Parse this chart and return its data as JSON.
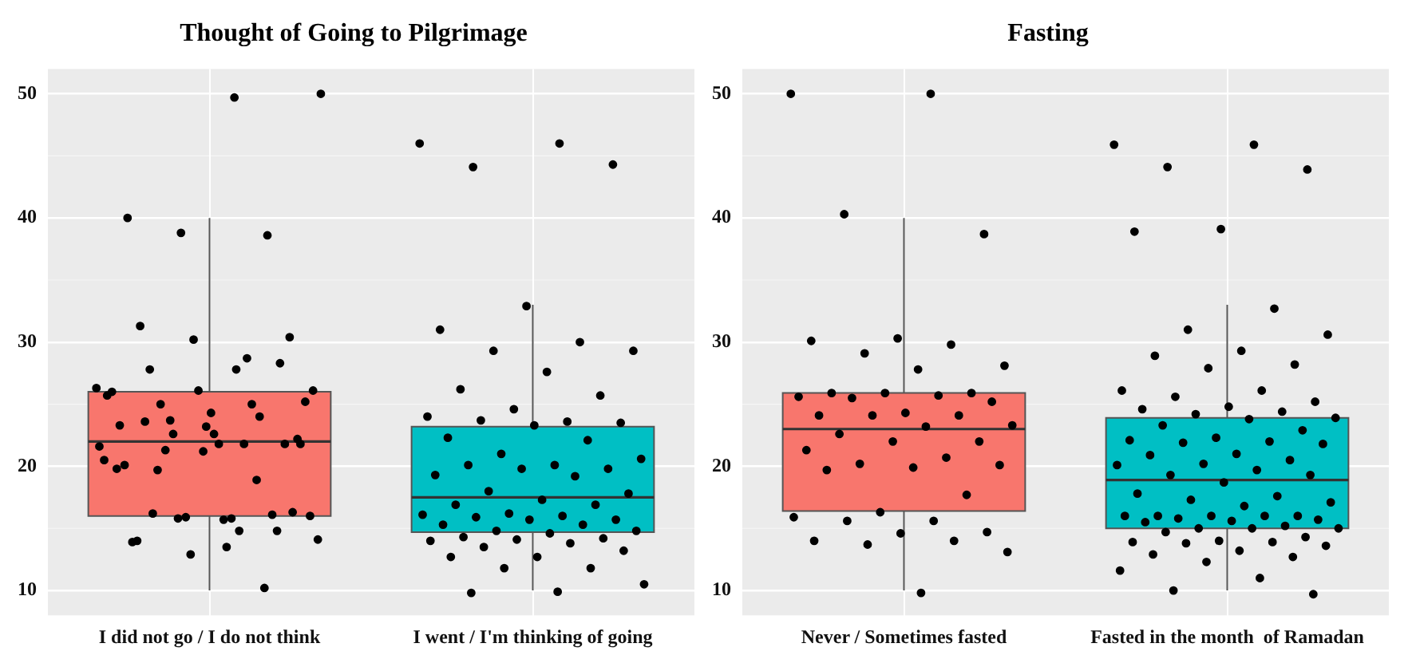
{
  "chart_data": [
    {
      "type": "box",
      "title": "Thought of Going to Pilgrimage",
      "categories": [
        "I did not go / I do not think",
        "I went / I'm thinking of going"
      ],
      "colors": [
        "#f8766d",
        "#00bfc4"
      ],
      "ylim": [
        8,
        52
      ],
      "yticks": [
        10,
        20,
        30,
        40,
        50
      ],
      "grid": true,
      "boxes": [
        {
          "low": 10,
          "q1": 16,
          "median": 22,
          "q3": 26,
          "high": 40
        },
        {
          "low": 10,
          "q1": 14.7,
          "median": 17.5,
          "q3": 23.2,
          "high": 33
        }
      ],
      "series": [
        {
          "type": "scatter",
          "color": "#000000",
          "x": [
            "I did not go / I do not think",
            "I did not go / I do not think",
            "I did not go / I do not think",
            "I did not go / I do not think",
            "I did not go / I do not think",
            "I did not go / I do not think",
            "I did not go / I do not think",
            "I did not go / I do not think",
            "I did not go / I do not think",
            "I did not go / I do not think",
            "I did not go / I do not think",
            "I did not go / I do not think",
            "I did not go / I do not think",
            "I did not go / I do not think",
            "I did not go / I do not think",
            "I did not go / I do not think",
            "I did not go / I do not think",
            "I did not go / I do not think",
            "I did not go / I do not think",
            "I did not go / I do not think",
            "I did not go / I do not think",
            "I did not go / I do not think",
            "I did not go / I do not think",
            "I did not go / I do not think",
            "I did not go / I do not think",
            "I did not go / I do not think",
            "I did not go / I do not think",
            "I did not go / I do not think",
            "I did not go / I do not think",
            "I did not go / I do not think",
            "I did not go / I do not think",
            "I did not go / I do not think",
            "I did not go / I do not think",
            "I did not go / I do not think",
            "I did not go / I do not think",
            "I did not go / I do not think",
            "I did not go / I do not think",
            "I did not go / I do not think",
            "I did not go / I do not think",
            "I did not go / I do not think",
            "I did not go / I do not think",
            "I did not go / I do not think",
            "I did not go / I do not think",
            "I did not go / I do not think",
            "I did not go / I do not think",
            "I did not go / I do not think",
            "I did not go / I do not think",
            "I did not go / I do not think",
            "I did not go / I do not think",
            "I did not go / I do not think",
            "I did not go / I do not think",
            "I did not go / I do not think",
            "I did not go / I do not think",
            "I did not go / I do not think",
            "I did not go / I do not think",
            "I did not go / I do not think",
            "I did not go / I do not think"
          ],
          "values": [
            26.3,
            27.8,
            27.8,
            30.4,
            21.2,
            19.8,
            18.9,
            23.7,
            16.0,
            15.7,
            14.0,
            14.8,
            12.9,
            20.5,
            21.8,
            19.7,
            22.2,
            24.3,
            20.1,
            10.2,
            15.8,
            14.1,
            15.8,
            23.6,
            21.8,
            26.1,
            26.0,
            25.0,
            21.3,
            25.2,
            21.8,
            13.9,
            16.1,
            15.9,
            21.6,
            14.8,
            16.2,
            16.3,
            23.2,
            23.3,
            24.0,
            22.6,
            26.1,
            13.5,
            31.3,
            28.3,
            30.2,
            25.7,
            28.7,
            25.0,
            21.8,
            22.6,
            40,
            38.6,
            38.8,
            50,
            49.7
          ]
        },
        {
          "type": "scatter",
          "color": "#000000",
          "x": [
            "I went / I'm thinking of going",
            "I went / I'm thinking of going",
            "I went / I'm thinking of going",
            "I went / I'm thinking of going",
            "I went / I'm thinking of going",
            "I went / I'm thinking of going",
            "I went / I'm thinking of going",
            "I went / I'm thinking of going",
            "I went / I'm thinking of going",
            "I went / I'm thinking of going",
            "I went / I'm thinking of going",
            "I went / I'm thinking of going",
            "I went / I'm thinking of going",
            "I went / I'm thinking of going",
            "I went / I'm thinking of going",
            "I went / I'm thinking of going",
            "I went / I'm thinking of going",
            "I went / I'm thinking of going",
            "I went / I'm thinking of going",
            "I went / I'm thinking of going",
            "I went / I'm thinking of going",
            "I went / I'm thinking of going",
            "I went / I'm thinking of going",
            "I went / I'm thinking of going",
            "I went / I'm thinking of going",
            "I went / I'm thinking of going",
            "I went / I'm thinking of going",
            "I went / I'm thinking of going",
            "I went / I'm thinking of going",
            "I went / I'm thinking of going",
            "I went / I'm thinking of going",
            "I went / I'm thinking of going",
            "I went / I'm thinking of going",
            "I went / I'm thinking of going",
            "I went / I'm thinking of going",
            "I went / I'm thinking of going",
            "I went / I'm thinking of going",
            "I went / I'm thinking of going",
            "I went / I'm thinking of going",
            "I went / I'm thinking of going",
            "I went / I'm thinking of going",
            "I went / I'm thinking of going",
            "I went / I'm thinking of going",
            "I went / I'm thinking of going",
            "I went / I'm thinking of going",
            "I went / I'm thinking of going",
            "I went / I'm thinking of going",
            "I went / I'm thinking of going",
            "I went / I'm thinking of going",
            "I went / I'm thinking of going",
            "I went / I'm thinking of going",
            "I went / I'm thinking of going",
            "I went / I'm thinking of going",
            "I went / I'm thinking of going",
            "I went / I'm thinking of going",
            "I went / I'm thinking of going",
            "I went / I'm thinking of going",
            "I went / I'm thinking of going"
          ],
          "values": [
            46.0,
            46.0,
            44.1,
            44.3,
            32.9,
            31.0,
            30.0,
            29.3,
            29.3,
            27.6,
            26.2,
            25.7,
            24.6,
            24.0,
            23.6,
            23.7,
            23.5,
            23.3,
            22.3,
            22.1,
            21.0,
            20.6,
            20.1,
            20.1,
            19.8,
            19.8,
            19.3,
            19.2,
            18.0,
            17.8,
            17.3,
            16.9,
            16.9,
            16.2,
            16.1,
            16.0,
            15.9,
            15.7,
            15.7,
            15.3,
            15.3,
            14.8,
            14.8,
            14.6,
            14.3,
            14.2,
            14.1,
            14.0,
            13.8,
            13.5,
            13.2,
            12.7,
            12.7,
            11.8,
            11.8,
            10.5,
            9.9,
            9.8
          ]
        }
      ]
    },
    {
      "type": "box",
      "title": "Fasting",
      "categories": [
        "Never / Sometimes fasted",
        "Fasted in the month  of Ramadan"
      ],
      "colors": [
        "#f8766d",
        "#00bfc4"
      ],
      "ylim": [
        8,
        52
      ],
      "yticks": [
        10,
        20,
        30,
        40,
        50
      ],
      "grid": true,
      "boxes": [
        {
          "low": 10,
          "q1": 16.4,
          "median": 23,
          "q3": 25.9,
          "high": 40
        },
        {
          "low": 10,
          "q1": 15,
          "median": 18.9,
          "q3": 23.9,
          "high": 33
        }
      ],
      "series": [
        {
          "type": "scatter",
          "color": "#000000",
          "x": [
            "Never / Sometimes fasted",
            "Never / Sometimes fasted",
            "Never / Sometimes fasted",
            "Never / Sometimes fasted",
            "Never / Sometimes fasted",
            "Never / Sometimes fasted",
            "Never / Sometimes fasted",
            "Never / Sometimes fasted",
            "Never / Sometimes fasted",
            "Never / Sometimes fasted",
            "Never / Sometimes fasted",
            "Never / Sometimes fasted",
            "Never / Sometimes fasted",
            "Never / Sometimes fasted",
            "Never / Sometimes fasted",
            "Never / Sometimes fasted",
            "Never / Sometimes fasted",
            "Never / Sometimes fasted",
            "Never / Sometimes fasted",
            "Never / Sometimes fasted",
            "Never / Sometimes fasted",
            "Never / Sometimes fasted",
            "Never / Sometimes fasted",
            "Never / Sometimes fasted",
            "Never / Sometimes fasted",
            "Never / Sometimes fasted",
            "Never / Sometimes fasted",
            "Never / Sometimes fasted",
            "Never / Sometimes fasted",
            "Never / Sometimes fasted",
            "Never / Sometimes fasted",
            "Never / Sometimes fasted",
            "Never / Sometimes fasted",
            "Never / Sometimes fasted",
            "Never / Sometimes fasted",
            "Never / Sometimes fasted",
            "Never / Sometimes fasted",
            "Never / Sometimes fasted",
            "Never / Sometimes fasted",
            "Never / Sometimes fasted",
            "Never / Sometimes fasted",
            "Never / Sometimes fasted",
            "Never / Sometimes fasted",
            "Never / Sometimes fasted"
          ],
          "values": [
            50,
            50,
            40.3,
            38.7,
            30.3,
            30.1,
            29.8,
            29.1,
            28.1,
            27.8,
            25.9,
            25.9,
            25.9,
            25.6,
            25.7,
            25.5,
            25.2,
            24.3,
            24.1,
            24.1,
            24.1,
            23.3,
            23.2,
            22.6,
            22.0,
            22.0,
            21.3,
            20.7,
            20.2,
            20.1,
            19.9,
            19.7,
            17.7,
            16.3,
            15.9,
            15.6,
            15.6,
            14.7,
            14.6,
            14.0,
            14.0,
            13.7,
            13.1,
            9.8
          ]
        },
        {
          "type": "scatter",
          "color": "#000000",
          "x": [
            "Fasted in the month  of Ramadan",
            "Fasted in the month  of Ramadan",
            "Fasted in the month  of Ramadan",
            "Fasted in the month  of Ramadan",
            "Fasted in the month  of Ramadan",
            "Fasted in the month  of Ramadan",
            "Fasted in the month  of Ramadan",
            "Fasted in the month  of Ramadan",
            "Fasted in the month  of Ramadan",
            "Fasted in the month  of Ramadan",
            "Fasted in the month  of Ramadan",
            "Fasted in the month  of Ramadan",
            "Fasted in the month  of Ramadan",
            "Fasted in the month  of Ramadan",
            "Fasted in the month  of Ramadan",
            "Fasted in the month  of Ramadan",
            "Fasted in the month  of Ramadan",
            "Fasted in the month  of Ramadan",
            "Fasted in the month  of Ramadan",
            "Fasted in the month  of Ramadan",
            "Fasted in the month  of Ramadan",
            "Fasted in the month  of Ramadan",
            "Fasted in the month  of Ramadan",
            "Fasted in the month  of Ramadan",
            "Fasted in the month  of Ramadan",
            "Fasted in the month  of Ramadan",
            "Fasted in the month  of Ramadan",
            "Fasted in the month  of Ramadan",
            "Fasted in the month  of Ramadan",
            "Fasted in the month  of Ramadan",
            "Fasted in the month  of Ramadan",
            "Fasted in the month  of Ramadan",
            "Fasted in the month  of Ramadan",
            "Fasted in the month  of Ramadan",
            "Fasted in the month  of Ramadan",
            "Fasted in the month  of Ramadan",
            "Fasted in the month  of Ramadan",
            "Fasted in the month  of Ramadan",
            "Fasted in the month  of Ramadan",
            "Fasted in the month  of Ramadan",
            "Fasted in the month  of Ramadan",
            "Fasted in the month  of Ramadan",
            "Fasted in the month  of Ramadan",
            "Fasted in the month  of Ramadan",
            "Fasted in the month  of Ramadan",
            "Fasted in the month  of Ramadan",
            "Fasted in the month  of Ramadan",
            "Fasted in the month  of Ramadan",
            "Fasted in the month  of Ramadan",
            "Fasted in the month  of Ramadan",
            "Fasted in the month  of Ramadan",
            "Fasted in the month  of Ramadan",
            "Fasted in the month  of Ramadan",
            "Fasted in the month  of Ramadan",
            "Fasted in the month  of Ramadan",
            "Fasted in the month  of Ramadan",
            "Fasted in the month  of Ramadan",
            "Fasted in the month  of Ramadan",
            "Fasted in the month  of Ramadan",
            "Fasted in the month  of Ramadan",
            "Fasted in the month  of Ramadan",
            "Fasted in the month  of Ramadan",
            "Fasted in the month  of Ramadan",
            "Fasted in the month  of Ramadan",
            "Fasted in the month  of Ramadan",
            "Fasted in the month  of Ramadan",
            "Fasted in the month  of Ramadan",
            "Fasted in the month  of Ramadan",
            "Fasted in the month  of Ramadan",
            "Fasted in the month  of Ramadan",
            "Fasted in the month  of Ramadan",
            "Fasted in the month  of Ramadan"
          ],
          "values": [
            45.9,
            45.9,
            44.1,
            43.9,
            39.1,
            38.9,
            32.7,
            31.0,
            30.6,
            29.3,
            28.9,
            28.2,
            27.9,
            26.1,
            26.1,
            25.6,
            25.2,
            24.8,
            24.6,
            24.4,
            24.2,
            23.9,
            23.8,
            23.3,
            22.9,
            22.3,
            22.1,
            22.0,
            21.9,
            21.8,
            21.0,
            20.9,
            20.5,
            20.2,
            20.1,
            19.7,
            19.3,
            19.3,
            18.7,
            17.8,
            17.6,
            17.3,
            17.1,
            16.8,
            16.0,
            16.0,
            16.0,
            16.0,
            16.0,
            15.8,
            15.7,
            15.6,
            15.5,
            15.2,
            15.0,
            15.0,
            15.0,
            14.7,
            14.3,
            14.0,
            13.9,
            13.9,
            13.8,
            13.6,
            13.2,
            12.9,
            12.7,
            12.3,
            11.6,
            11.0,
            10.0,
            9.7
          ]
        }
      ]
    }
  ]
}
